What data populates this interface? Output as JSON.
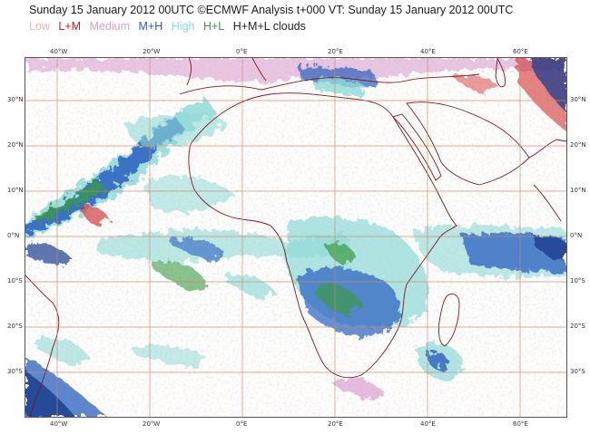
{
  "header": {
    "title": "Sunday 15 January 2012 00UTC ©ECMWF Analysis t+000 VT: Sunday 15 January 2012 00UTC"
  },
  "legend": [
    {
      "label": "Low",
      "color": "#e8b9b0"
    },
    {
      "label": "L+M",
      "color": "#cc2222"
    },
    {
      "label": "Medium",
      "color": "#d9a0cf"
    },
    {
      "label": "M+H",
      "color": "#2a5fbf"
    },
    {
      "label": "High",
      "color": "#8fd9d6"
    },
    {
      "label": "H+L",
      "color": "#3a9a46"
    },
    {
      "label": "H+M+L clouds",
      "color": "#222222"
    }
  ],
  "map": {
    "lon_range": [
      -47,
      70
    ],
    "lat_range": [
      -40,
      39
    ],
    "lon_ticks": [
      "40°W",
      "20°W",
      "0°E",
      "20°E",
      "40°E",
      "60°E"
    ],
    "lat_ticks_left": [
      "30°N",
      "20°N",
      "10°N",
      "0°N",
      "10°S",
      "20°S",
      "30°S"
    ],
    "lat_ticks_right": [
      "30°N",
      "20°N",
      "10°N",
      "0°N",
      "10°S",
      "20°S",
      "30°S"
    ],
    "gridline_color": "#c8896a",
    "coast_color": "#7a1a1a"
  }
}
